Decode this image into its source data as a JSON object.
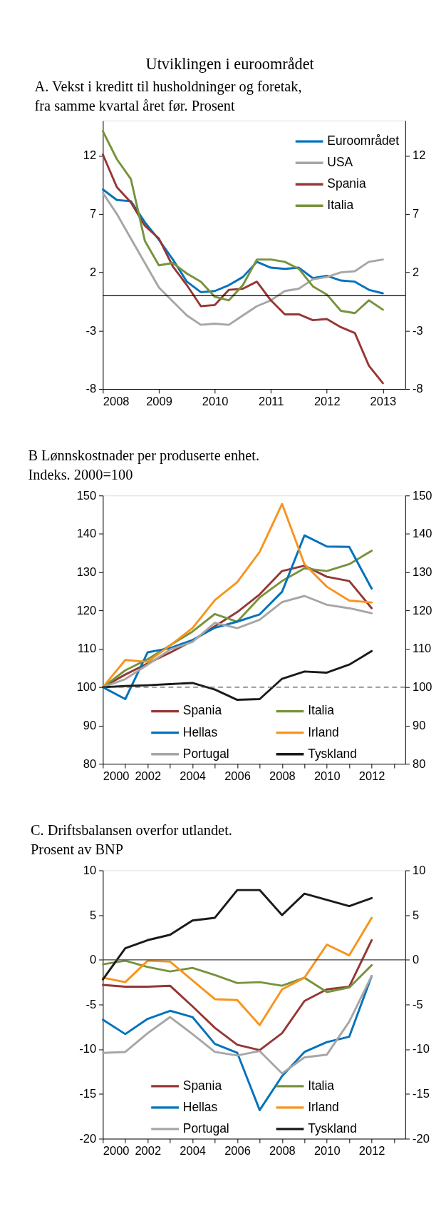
{
  "chart_data": [
    {
      "type": "line",
      "title": "Utviklingen i euroområdet",
      "subtitle": "A. Vekst i kreditt til husholdninger og foretak,\nfra samme kvartal året før. Prosent",
      "x": [
        2008,
        2008.25,
        2008.5,
        2008.75,
        2009,
        2009.25,
        2009.5,
        2009.75,
        2010,
        2010.25,
        2010.5,
        2010.75,
        2011,
        2011.25,
        2011.5,
        2011.75,
        2012,
        2012.25,
        2012.5,
        2012.75,
        2013
      ],
      "series": [
        {
          "name": "Euroområdet",
          "color": "#0072bc",
          "values": [
            9.1,
            8.2,
            8.1,
            6.3,
            4.8,
            3.1,
            1.2,
            0.3,
            0.4,
            0.9,
            1.6,
            2.9,
            2.4,
            2.3,
            2.4,
            1.5,
            1.7,
            1.3,
            1.2,
            0.5,
            0.2
          ]
        },
        {
          "name": "USA",
          "color": "#a6a6a6",
          "values": [
            8.8,
            7.0,
            4.9,
            2.8,
            0.7,
            -0.5,
            -1.7,
            -2.5,
            -2.4,
            -2.5,
            -1.7,
            -0.9,
            -0.4,
            0.4,
            0.6,
            1.4,
            1.6,
            2.0,
            2.1,
            2.9,
            3.1
          ]
        },
        {
          "name": "Spania",
          "color": "#953735",
          "values": [
            12.1,
            9.3,
            8.0,
            6.0,
            4.9,
            2.5,
            0.9,
            -0.9,
            -0.8,
            0.5,
            0.6,
            1.2,
            -0.4,
            -1.6,
            -1.6,
            -2.1,
            -2.0,
            -2.7,
            -3.2,
            -6.0,
            -7.5
          ]
        },
        {
          "name": "Italia",
          "color": "#77933c",
          "values": [
            14.1,
            11.7,
            10.0,
            4.7,
            2.6,
            2.8,
            1.9,
            1.2,
            -0.1,
            -0.4,
            0.9,
            3.1,
            3.1,
            2.9,
            2.3,
            0.8,
            0.1,
            -1.3,
            -1.5,
            -0.4,
            -1.2
          ]
        }
      ],
      "xlim": [
        2008,
        2013.4
      ],
      "xticks": [
        2008,
        2009,
        2010,
        2011,
        2012,
        2013
      ],
      "ylim": [
        -8,
        15
      ],
      "yticks": [
        -8,
        -3,
        2,
        7,
        12
      ],
      "y2lim": [
        -8,
        15
      ],
      "y2ticks": [
        -8,
        -3,
        2,
        7,
        12
      ],
      "ref_lines": [
        {
          "axis": "y",
          "value": 0,
          "color": "#000000",
          "line_style": "solid"
        }
      ],
      "legend": "top right",
      "grid": false,
      "line_style": "solid",
      "marker": "none"
    },
    {
      "type": "line",
      "title": "B Lønnskostnader per produserte enhet.\nIndeks. 2000=100",
      "x": [
        2000,
        2001,
        2002,
        2003,
        2004,
        2005,
        2006,
        2007,
        2008,
        2009,
        2010,
        2011,
        2012
      ],
      "series": [
        {
          "name": "Spania",
          "color": "#953735",
          "values": [
            100,
            103.3,
            106.2,
            109.0,
            112.1,
            115.9,
            119.6,
            124.2,
            130.3,
            131.7,
            128.8,
            127.7,
            120.6
          ]
        },
        {
          "name": "Italia",
          "color": "#77933c",
          "values": [
            100,
            104.4,
            107.3,
            110.9,
            114.5,
            119.1,
            117.1,
            123.4,
            127.7,
            131.0,
            130.3,
            132.1,
            135.6
          ]
        },
        {
          "name": "Hellas",
          "color": "#0072bc",
          "values": [
            100,
            96.9,
            109.1,
            110.2,
            112.3,
            115.5,
            117.1,
            119.0,
            124.9,
            139.6,
            136.7,
            136.6,
            125.7
          ]
        },
        {
          "name": "Irland",
          "color": "#f7941d",
          "values": [
            100,
            107.1,
            106.6,
            110.9,
            115.4,
            122.7,
            127.4,
            135.3,
            147.8,
            132.1,
            126.2,
            122.6,
            122.1
          ]
        },
        {
          "name": "Portugal",
          "color": "#a6a6a6",
          "values": [
            100,
            102.1,
            105.9,
            109.8,
            111.8,
            116.8,
            115.4,
            117.6,
            122.2,
            123.8,
            121.5,
            120.6,
            119.3
          ]
        },
        {
          "name": "Tyskland",
          "color": "#1a1a1a",
          "values": [
            100,
            100.3,
            100.5,
            100.8,
            101.1,
            99.4,
            96.7,
            96.9,
            102.2,
            104.1,
            103.8,
            105.9,
            109.4
          ]
        }
      ],
      "xlim": [
        2000,
        2013.5
      ],
      "xticks": [
        2000,
        {
          "value": 2001,
          "label": null
        },
        2002,
        {
          "value": 2003,
          "label": null
        },
        2004,
        {
          "value": 2005,
          "label": null
        },
        2006,
        {
          "value": 2007,
          "label": null
        },
        2008,
        {
          "value": 2009,
          "label": null
        },
        2010,
        {
          "value": 2011,
          "label": null
        },
        2012,
        {
          "value": 2013,
          "label": null
        }
      ],
      "ylim": [
        80,
        150
      ],
      "yticks": [
        80,
        90,
        100,
        110,
        120,
        130,
        140,
        150
      ],
      "y2lim": [
        80,
        150
      ],
      "y2ticks": [
        80,
        90,
        100,
        110,
        120,
        130,
        140,
        150
      ],
      "ref_lines": [
        {
          "axis": "y",
          "value": 100,
          "color": "#595959",
          "line_style": "dashed"
        }
      ],
      "legend": "bottom",
      "grid": false,
      "line_style": "solid",
      "marker": "none"
    },
    {
      "type": "line",
      "title": "C. Driftsbalansen overfor utlandet.\nProsent av BNP",
      "x": [
        2000,
        2001,
        2002,
        2003,
        2004,
        2005,
        2006,
        2007,
        2008,
        2009,
        2010,
        2011,
        2012
      ],
      "series": [
        {
          "name": "Spania",
          "color": "#953735",
          "values": [
            -2.8,
            -3.0,
            -3.0,
            -2.9,
            -5.2,
            -7.6,
            -9.5,
            -10.1,
            -8.2,
            -4.6,
            -3.3,
            -3.0,
            2.2
          ]
        },
        {
          "name": "Italia",
          "color": "#77933c",
          "values": [
            -0.5,
            -0.1,
            -0.8,
            -1.3,
            -0.9,
            -1.7,
            -2.6,
            -2.5,
            -2.9,
            -2.0,
            -3.6,
            -3.1,
            -0.6
          ]
        },
        {
          "name": "Hellas",
          "color": "#0072bc",
          "values": [
            -6.7,
            -8.3,
            -6.6,
            -5.7,
            -6.4,
            -9.4,
            -10.4,
            -16.8,
            -13.0,
            -10.3,
            -9.2,
            -8.6,
            -1.8
          ]
        },
        {
          "name": "Irland",
          "color": "#f7941d",
          "values": [
            -2.0,
            -2.5,
            -0.1,
            -0.2,
            -2.3,
            -4.4,
            -4.5,
            -7.3,
            -3.3,
            -2.0,
            1.7,
            0.5,
            4.7
          ]
        },
        {
          "name": "Portugal",
          "color": "#a6a6a6",
          "values": [
            -10.4,
            -10.3,
            -8.2,
            -6.4,
            -8.3,
            -10.3,
            -10.7,
            -10.2,
            -12.7,
            -10.9,
            -10.6,
            -6.9,
            -1.8
          ]
        },
        {
          "name": "Tyskland",
          "color": "#1a1a1a",
          "values": [
            -2.2,
            1.3,
            2.2,
            2.8,
            4.4,
            4.7,
            7.8,
            7.8,
            5.0,
            7.4,
            6.7,
            6.0,
            6.9
          ]
        }
      ],
      "xlim": [
        2000,
        2013.5
      ],
      "xticks": [
        2000,
        {
          "value": 2001,
          "label": null
        },
        2002,
        {
          "value": 2003,
          "label": null
        },
        2004,
        {
          "value": 2005,
          "label": null
        },
        2006,
        {
          "value": 2007,
          "label": null
        },
        2008,
        {
          "value": 2009,
          "label": null
        },
        2010,
        {
          "value": 2011,
          "label": null
        },
        2012,
        {
          "value": 2013,
          "label": null
        }
      ],
      "ylim": [
        -20,
        10
      ],
      "yticks": [
        -20,
        -15,
        -10,
        -5,
        0,
        5,
        10
      ],
      "y2lim": [
        -20,
        10
      ],
      "y2ticks": [
        -20,
        -15,
        -10,
        -5,
        0,
        5,
        10
      ],
      "ref_lines": [
        {
          "axis": "y",
          "value": 0,
          "color": "#404040",
          "line_style": "solid"
        }
      ],
      "legend": "bottom",
      "grid": false,
      "line_style": "solid",
      "marker": "none"
    }
  ]
}
